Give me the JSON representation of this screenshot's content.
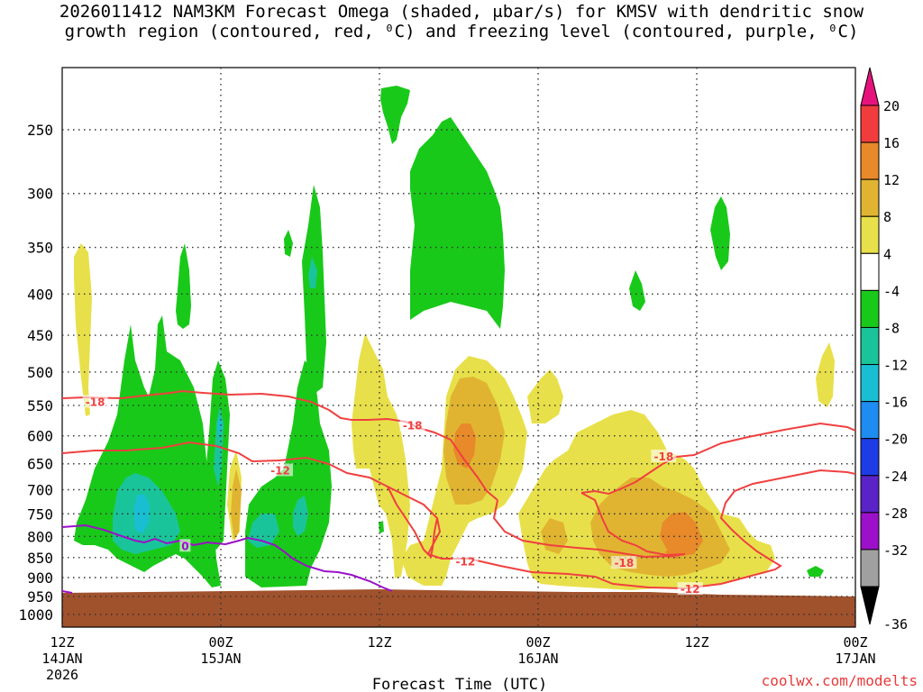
{
  "page": {
    "title_line1": "2026011412 NAM3KM Forecast Omega (shaded, μbar/s) for KMSV with dendritic snow",
    "title_line2": "growth region (contoured, red, ⁰C) and freezing level (contoured, purple, ⁰C)",
    "xlabel": "Forecast Time (UTC)",
    "credit": "coolwx.com/modelts"
  },
  "chart_data": {
    "type": "heatmap",
    "y_axis": {
      "ticks": [
        250,
        300,
        350,
        400,
        450,
        500,
        550,
        600,
        650,
        700,
        750,
        800,
        850,
        900,
        950,
        1000
      ],
      "range": [
        200,
        1050
      ]
    },
    "x_axis": {
      "ticks": [
        {
          "hour": 0,
          "label1": "12Z",
          "label2": "14JAN",
          "label3": "2026"
        },
        {
          "hour": 12,
          "label1": "00Z",
          "label2": "15JAN",
          "label3": ""
        },
        {
          "hour": 24,
          "label1": "12Z",
          "label2": "",
          "label3": ""
        },
        {
          "hour": 36,
          "label1": "00Z",
          "label2": "16JAN",
          "label3": ""
        },
        {
          "hour": 48,
          "label1": "12Z",
          "label2": "",
          "label3": ""
        },
        {
          "hour": 60,
          "label1": "00Z",
          "label2": "17JAN",
          "label3": ""
        }
      ],
      "range": [
        0,
        60
      ]
    },
    "grid": true,
    "colorbar": {
      "labels": [
        "20",
        "16",
        "12",
        "8",
        "4",
        "-4",
        "-8",
        "-12",
        "-16",
        "-20",
        "-24",
        "-28",
        "-32",
        "-36"
      ],
      "bands": [
        {
          "range": [
            16,
            20
          ],
          "color": "#f03c3c"
        },
        {
          "range": [
            12,
            16
          ],
          "color": "#e8892a"
        },
        {
          "range": [
            8,
            12
          ],
          "color": "#e0b431"
        },
        {
          "range": [
            4,
            8
          ],
          "color": "#e8e04a"
        },
        {
          "range": [
            -4,
            4
          ],
          "color": "#ffffff"
        },
        {
          "range": [
            -8,
            -4
          ],
          "color": "#19c919"
        },
        {
          "range": [
            -12,
            -8
          ],
          "color": "#1ac49a"
        },
        {
          "range": [
            -16,
            -12
          ],
          "color": "#19bed2"
        },
        {
          "range": [
            -20,
            -16
          ],
          "color": "#1e8cf0"
        },
        {
          "range": [
            -24,
            -20
          ],
          "color": "#1e3ce6"
        },
        {
          "range": [
            -28,
            -24
          ],
          "color": "#5a23c8"
        },
        {
          "range": [
            -32,
            -28
          ],
          "color": "#9b10c8"
        },
        {
          "range": [
            -36,
            -32
          ],
          "color": "#a0a0a0"
        }
      ],
      "top_cap_color": "#e6137d",
      "bottom_cap_color": "#000000"
    },
    "contour_labels": [
      {
        "text": "-18",
        "hour": 2.5,
        "p": 545,
        "color": "#f04040"
      },
      {
        "text": "-12",
        "hour": 16.5,
        "p": 663,
        "color": "#f04040"
      },
      {
        "text": "-18",
        "hour": 26.5,
        "p": 583,
        "color": "#f04040"
      },
      {
        "text": "-12",
        "hour": 30.5,
        "p": 860,
        "color": "#f04040"
      },
      {
        "text": "-18",
        "hour": 45.5,
        "p": 637,
        "color": "#f04040"
      },
      {
        "text": "-18",
        "hour": 42.5,
        "p": 864,
        "color": "#f04040"
      },
      {
        "text": "-12",
        "hour": 47.5,
        "p": 931,
        "color": "#f04040"
      },
      {
        "text": "0",
        "hour": 9.3,
        "p": 823,
        "color": "#9b10c8"
      }
    ]
  }
}
